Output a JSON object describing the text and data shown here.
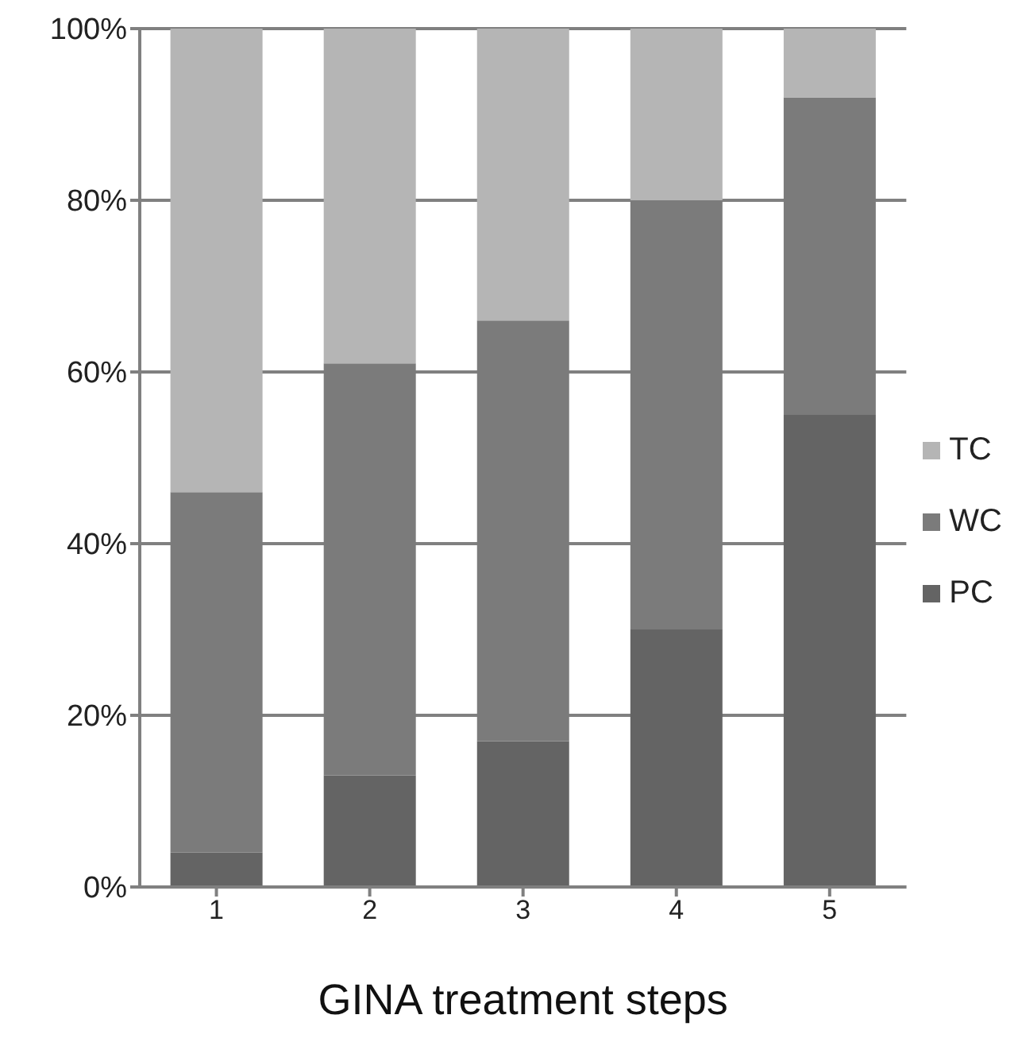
{
  "chart_data": {
    "type": "bar",
    "xlabel": "GINA treatment steps",
    "categories": [
      "1",
      "2",
      "3",
      "4",
      "5"
    ],
    "stacked": true,
    "series": [
      {
        "name": "PC",
        "color": "#646464",
        "values": [
          4,
          13,
          17,
          30,
          55
        ]
      },
      {
        "name": "WC",
        "color": "#7b7b7b",
        "values": [
          42,
          48,
          49,
          50,
          37
        ]
      },
      {
        "name": "TC",
        "color": "#b5b5b5",
        "values": [
          54,
          39,
          34,
          20,
          8
        ]
      }
    ],
    "ylim": [
      0,
      100
    ],
    "yticks": [
      {
        "value": 0,
        "label": "0%"
      },
      {
        "value": 20,
        "label": "20%"
      },
      {
        "value": 40,
        "label": "40%"
      },
      {
        "value": 60,
        "label": "60%"
      },
      {
        "value": 80,
        "label": "80%"
      },
      {
        "value": 100,
        "label": "100%"
      }
    ],
    "grid": "y",
    "legend": "right"
  }
}
